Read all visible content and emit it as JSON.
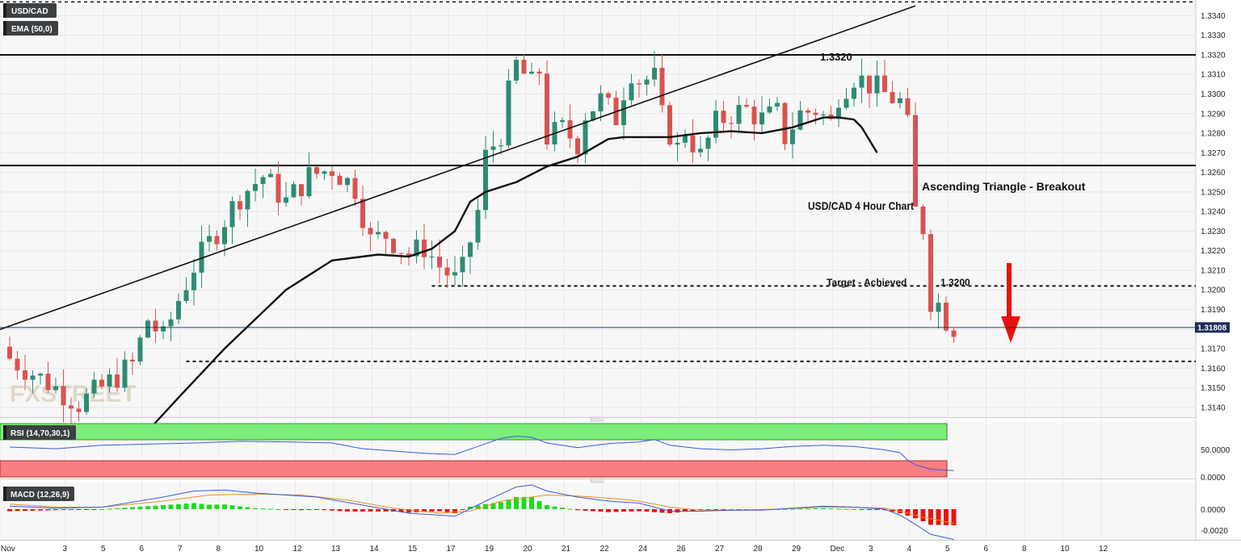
{
  "symbol": "USD/CAD",
  "indicator_label": "EMA (50,0)",
  "watermark": "FXSTREET",
  "price_badge": "1.31808",
  "colors": {
    "up": "#2e8b73",
    "down": "#d9534f",
    "badge": "#1b2d5b",
    "arrow": "#e8120c"
  },
  "chart_data": [
    {
      "type": "line",
      "title": "USD/CAD  4 Hour Chart",
      "annotations": [
        "Ascending Triangle - Breakout",
        "1.3320",
        "Target - Achieved",
        "1.3200"
      ],
      "x_ticks": [
        "Nov",
        "3",
        "5",
        "6",
        "7",
        "8",
        "10",
        "12",
        "13",
        "14",
        "15",
        "17",
        "19",
        "20",
        "21",
        "22",
        "24",
        "26",
        "27",
        "28",
        "29",
        "Dec",
        "3",
        "4",
        "5",
        "6",
        "8",
        "10",
        "12"
      ],
      "ylim": [
        1.3135,
        1.3348
      ],
      "y_ticks": [
        "1.3140",
        "1.3150",
        "1.3160",
        "1.3170",
        "1.3180",
        "1.3190",
        "1.3200",
        "1.3210",
        "1.3220",
        "1.3230",
        "1.3240",
        "1.3250",
        "1.3260",
        "1.3270",
        "1.3280",
        "1.3290",
        "1.3300",
        "1.3310",
        "1.3320",
        "1.3330",
        "1.3340"
      ],
      "levels": {
        "resistance": 1.332,
        "triangle_base": 1.32635,
        "target": 1.3202,
        "lower_support": 1.31635,
        "top_dotted": 1.3347,
        "current": 1.31808
      },
      "close_path": [
        [
          0,
          1.3165
        ],
        [
          6,
          1.315
        ],
        [
          9,
          1.3142
        ],
        [
          12,
          1.315
        ],
        [
          16,
          1.3162
        ],
        [
          18,
          1.3185
        ],
        [
          20,
          1.3175
        ],
        [
          22,
          1.3195
        ],
        [
          24,
          1.3212
        ],
        [
          27,
          1.323
        ],
        [
          30,
          1.3248
        ],
        [
          33,
          1.3258
        ],
        [
          36,
          1.3245
        ],
        [
          39,
          1.3258
        ],
        [
          42,
          1.3262
        ],
        [
          45,
          1.3252
        ],
        [
          47,
          1.3225
        ],
        [
          49,
          1.3228
        ],
        [
          52,
          1.3218
        ],
        [
          54,
          1.3222
        ],
        [
          56,
          1.3212
        ],
        [
          58,
          1.3205
        ],
        [
          59,
          1.321
        ],
        [
          61,
          1.324
        ],
        [
          62,
          1.3268
        ],
        [
          64,
          1.328
        ],
        [
          65,
          1.33
        ],
        [
          66,
          1.3315
        ],
        [
          68,
          1.3305
        ],
        [
          69,
          1.3312
        ],
        [
          70,
          1.3278
        ],
        [
          72,
          1.3282
        ],
        [
          74,
          1.3275
        ],
        [
          75,
          1.329
        ],
        [
          77,
          1.3297
        ],
        [
          79,
          1.3288
        ],
        [
          80,
          1.3302
        ],
        [
          81,
          1.3312
        ],
        [
          82,
          1.3307
        ],
        [
          84,
          1.3308
        ],
        [
          85,
          1.3288
        ],
        [
          87,
          1.3272
        ],
        [
          88,
          1.3282
        ],
        [
          90,
          1.3268
        ],
        [
          92,
          1.3285
        ],
        [
          94,
          1.329
        ],
        [
          96,
          1.3292
        ],
        [
          98,
          1.3287
        ],
        [
          100,
          1.329
        ],
        [
          101,
          1.3278
        ],
        [
          103,
          1.329
        ],
        [
          105,
          1.3292
        ],
        [
          107,
          1.3285
        ],
        [
          108,
          1.33
        ],
        [
          110,
          1.3309
        ],
        [
          112,
          1.3305
        ],
        [
          114,
          1.33
        ],
        [
          116,
          1.3296
        ],
        [
          117,
          1.3283
        ],
        [
          118,
          1.324
        ],
        [
          119,
          1.3232
        ],
        [
          120,
          1.3195
        ],
        [
          121,
          1.3193
        ],
        [
          122,
          1.3185
        ],
        [
          123,
          1.3181
        ]
      ],
      "ema50": [
        [
          18,
          1.3128
        ],
        [
          22,
          1.3145
        ],
        [
          28,
          1.317
        ],
        [
          36,
          1.32
        ],
        [
          42,
          1.3215
        ],
        [
          48,
          1.3218
        ],
        [
          52,
          1.3217
        ],
        [
          55,
          1.3221
        ],
        [
          58,
          1.323
        ],
        [
          60,
          1.3245
        ],
        [
          62,
          1.325
        ],
        [
          66,
          1.3255
        ],
        [
          70,
          1.3263
        ],
        [
          74,
          1.3268
        ],
        [
          78,
          1.3277
        ],
        [
          80,
          1.3278
        ],
        [
          86,
          1.3278
        ],
        [
          90,
          1.328
        ],
        [
          94,
          1.3281
        ],
        [
          98,
          1.328
        ],
        [
          102,
          1.3283
        ],
        [
          106,
          1.3288
        ],
        [
          108,
          1.3288
        ],
        [
          110,
          1.3287
        ],
        [
          111,
          1.3283
        ],
        [
          113,
          1.327
        ]
      ],
      "trendline": [
        [
          -30,
          1.314
        ],
        [
          118,
          1.3345
        ]
      ]
    },
    {
      "type": "line",
      "title": "RSI (14,70,30,1)",
      "y_ticks": [
        "50.0000",
        "0.0000"
      ],
      "rsi": [
        [
          0,
          55
        ],
        [
          6,
          52
        ],
        [
          12,
          58
        ],
        [
          18,
          60
        ],
        [
          24,
          62
        ],
        [
          30,
          65
        ],
        [
          36,
          64
        ],
        [
          42,
          62
        ],
        [
          46,
          52
        ],
        [
          50,
          48
        ],
        [
          54,
          44
        ],
        [
          58,
          42
        ],
        [
          61,
          56
        ],
        [
          64,
          70
        ],
        [
          66,
          74
        ],
        [
          68,
          72
        ],
        [
          70,
          62
        ],
        [
          74,
          54
        ],
        [
          78,
          61
        ],
        [
          82,
          64
        ],
        [
          84,
          68
        ],
        [
          86,
          58
        ],
        [
          90,
          52
        ],
        [
          94,
          50
        ],
        [
          98,
          52
        ],
        [
          102,
          56
        ],
        [
          106,
          58
        ],
        [
          110,
          56
        ],
        [
          114,
          50
        ],
        [
          116,
          45
        ],
        [
          117,
          32
        ],
        [
          118,
          24
        ],
        [
          120,
          16
        ],
        [
          123,
          14
        ]
      ]
    },
    {
      "type": "bar",
      "title": "MACD (12,26,9)",
      "y_ticks": [
        "0.0000",
        "-0.0020"
      ],
      "macd": [
        [
          0,
          0.0003
        ],
        [
          6,
          0.0001
        ],
        [
          12,
          0.0002
        ],
        [
          20,
          0.0012
        ],
        [
          24,
          0.0018
        ],
        [
          28,
          0.0019
        ],
        [
          32,
          0.0016
        ],
        [
          36,
          0.0014
        ],
        [
          40,
          0.0012
        ],
        [
          46,
          0.0004
        ],
        [
          52,
          -0.0004
        ],
        [
          58,
          -0.0007
        ],
        [
          62,
          0.0008
        ],
        [
          66,
          0.0022
        ],
        [
          68,
          0.0024
        ],
        [
          70,
          0.0018
        ],
        [
          74,
          0.0012
        ],
        [
          78,
          0.0008
        ],
        [
          82,
          0.0006
        ],
        [
          86,
          -0.0002
        ],
        [
          90,
          -0.0002
        ],
        [
          94,
          -0.0001
        ],
        [
          98,
          -0.0001
        ],
        [
          102,
          0.0001
        ],
        [
          106,
          0.0003
        ],
        [
          110,
          0.0002
        ],
        [
          114,
          0.0
        ],
        [
          116,
          -0.0006
        ],
        [
          118,
          -0.0015
        ],
        [
          120,
          -0.0025
        ],
        [
          123,
          -0.003
        ]
      ],
      "signal": [
        [
          0,
          0.0005
        ],
        [
          6,
          0.0002
        ],
        [
          12,
          0.0002
        ],
        [
          20,
          0.0008
        ],
        [
          26,
          0.0014
        ],
        [
          32,
          0.0015
        ],
        [
          38,
          0.0014
        ],
        [
          44,
          0.0009
        ],
        [
          50,
          0.0001
        ],
        [
          56,
          -0.0004
        ],
        [
          60,
          -0.0002
        ],
        [
          64,
          0.0008
        ],
        [
          70,
          0.0014
        ],
        [
          74,
          0.0013
        ],
        [
          78,
          0.0011
        ],
        [
          82,
          0.0008
        ],
        [
          86,
          0.0002
        ],
        [
          90,
          -0.0001
        ],
        [
          94,
          -0.0001
        ],
        [
          100,
          0.0
        ],
        [
          106,
          0.0002
        ],
        [
          110,
          0.0002
        ],
        [
          114,
          0.0001
        ],
        [
          116,
          -0.0002
        ],
        [
          119,
          -0.0008
        ],
        [
          123,
          -0.0014
        ]
      ]
    }
  ]
}
